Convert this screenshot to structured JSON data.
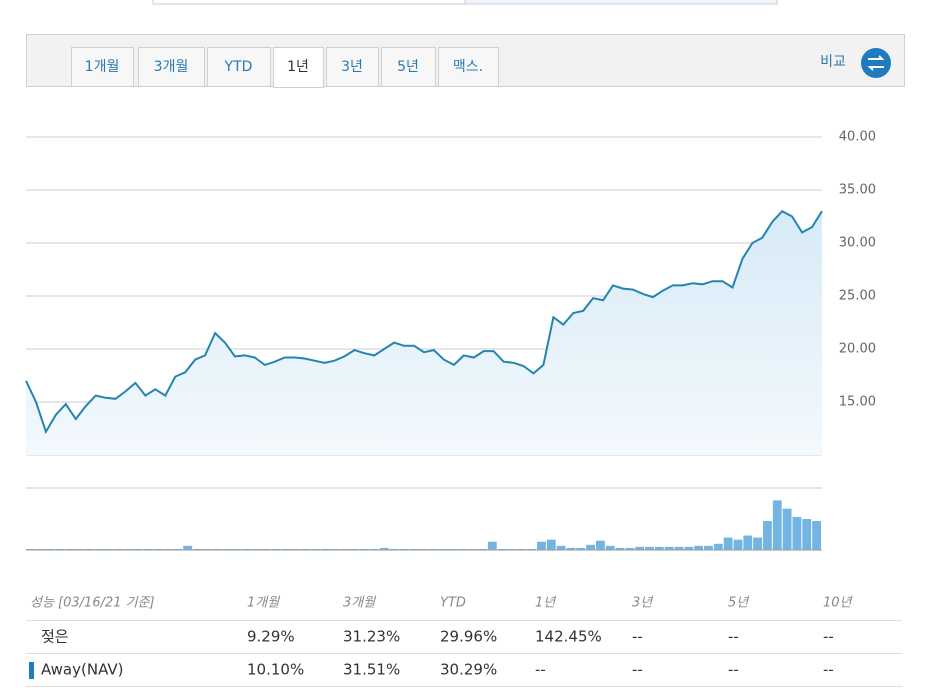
{
  "tabs": [
    "1개월",
    "3개월",
    "YTD",
    "1년",
    "3년",
    "5년",
    "맥스."
  ],
  "selected_tab": 3,
  "compare_label": "비교",
  "chart_data": {
    "type": "line",
    "color": "#2585ad",
    "values": [
      17.0,
      15.0,
      12.2,
      13.8,
      14.8,
      13.4,
      14.6,
      15.6,
      15.4,
      15.3,
      16.0,
      16.8,
      15.6,
      16.2,
      15.6,
      17.4,
      17.8,
      19.0,
      19.4,
      21.5,
      20.6,
      19.3,
      19.4,
      19.2,
      18.5,
      18.8,
      19.2,
      19.2,
      19.1,
      18.9,
      18.7,
      18.9,
      19.3,
      19.9,
      19.6,
      19.4,
      20.0,
      20.6,
      20.3,
      20.3,
      19.7,
      19.9,
      19.0,
      18.5,
      19.4,
      19.2,
      19.8,
      19.8,
      18.8,
      18.7,
      18.4,
      17.7,
      18.5,
      23.0,
      22.3,
      23.4,
      23.6,
      24.8,
      24.6,
      26.0,
      25.7,
      25.6,
      25.2,
      24.9,
      25.5,
      26.0,
      26.0,
      26.2,
      26.1,
      26.4,
      26.4,
      25.8,
      28.5,
      30.0,
      30.5,
      32.0,
      33.0,
      32.5,
      31.0,
      31.5,
      33.0
    ],
    "ylim": [
      10,
      40
    ],
    "yticks": [
      {
        "value": 15,
        "label": "15.00"
      },
      {
        "value": 20,
        "label": "20.00"
      },
      {
        "value": 25,
        "label": "25.00"
      },
      {
        "value": 30,
        "label": "30.00"
      },
      {
        "value": 35,
        "label": "35.00"
      },
      {
        "value": 40,
        "label": "40.00"
      }
    ],
    "grid": true,
    "volume": {
      "color": "#72b5e2",
      "ylim": [
        0,
        60
      ],
      "values": [
        1,
        1,
        1,
        1,
        1,
        1,
        1,
        1,
        1,
        1,
        1,
        1,
        1,
        1,
        1,
        1,
        4,
        1,
        1,
        1,
        1,
        1,
        1,
        1,
        1,
        1,
        1,
        1,
        1,
        1,
        1,
        1,
        1,
        1,
        1,
        1,
        2,
        1,
        1,
        1,
        1,
        1,
        1,
        1,
        1,
        1,
        1,
        8,
        1,
        1,
        1,
        1,
        8,
        10,
        4,
        2,
        2,
        5,
        9,
        4,
        2,
        2,
        3,
        3,
        3,
        3,
        3,
        3,
        4,
        4,
        6,
        12,
        10,
        14,
        12,
        28,
        48,
        40,
        32,
        30,
        28
      ]
    }
  },
  "table": {
    "header": [
      "성능 [03/16/21 기준]",
      "1개월",
      "3개월",
      "YTD",
      "1년",
      "3년",
      "5년",
      "10년"
    ],
    "rows": [
      [
        "젖은",
        "9.29%",
        "31.23%",
        "29.96%",
        "142.45%",
        "--",
        "--",
        "--"
      ],
      [
        "Away(NAV)",
        "10.10%",
        "31.51%",
        "30.29%",
        "--",
        "--",
        "--",
        "--"
      ]
    ]
  }
}
